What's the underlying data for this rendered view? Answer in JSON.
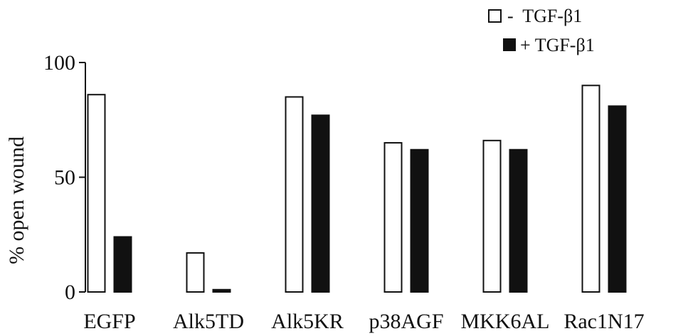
{
  "chart_data": {
    "type": "bar",
    "title": "",
    "xlabel": "",
    "ylabel": "% open wound",
    "ylim": [
      0,
      100
    ],
    "yticks": [
      0,
      50,
      100
    ],
    "categories": [
      "EGFP",
      "Alk5TD",
      "Alk5KR",
      "p38AGF",
      "MKK6AL",
      "Rac1N17"
    ],
    "series": [
      {
        "name": "-  TGF-β1",
        "fill": "#ffffff",
        "values": [
          86,
          17,
          85,
          65,
          66,
          90
        ]
      },
      {
        "name": "+ TGF-β1",
        "fill": "#111111",
        "values": [
          24,
          1,
          77,
          62,
          62,
          81
        ]
      }
    ],
    "legend_position": "top-right",
    "grid": false
  }
}
